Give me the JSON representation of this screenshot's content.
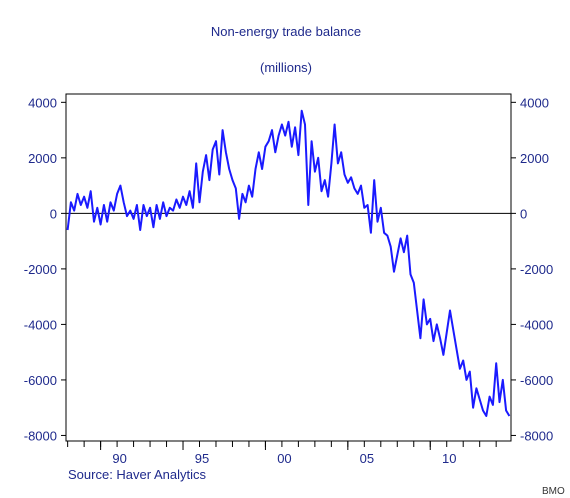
{
  "chart_data": {
    "type": "line",
    "title": "Non-energy trade balance",
    "subtitle": "(millions)",
    "xlabel": "",
    "ylabel": "",
    "xlim": [
      1987.9,
      2014.9
    ],
    "ylim": [
      -8200,
      4300
    ],
    "y_ticks": [
      4000,
      2000,
      0,
      -2000,
      -4000,
      -6000,
      -8000
    ],
    "x_ticks": [
      {
        "value": 1990,
        "label": "90"
      },
      {
        "value": 1995,
        "label": "95"
      },
      {
        "value": 2000,
        "label": "00"
      },
      {
        "value": 2005,
        "label": "05"
      },
      {
        "value": 2010,
        "label": "10"
      }
    ],
    "zero_line": true,
    "grid": false,
    "legend": "none",
    "series": [
      {
        "color": "#1a1aff",
        "points": [
          [
            1988.0,
            -600
          ],
          [
            1988.2,
            400
          ],
          [
            1988.4,
            100
          ],
          [
            1988.6,
            700
          ],
          [
            1988.8,
            300
          ],
          [
            1989.0,
            600
          ],
          [
            1989.2,
            200
          ],
          [
            1989.4,
            800
          ],
          [
            1989.6,
            -300
          ],
          [
            1989.8,
            200
          ],
          [
            1990.0,
            -400
          ],
          [
            1990.2,
            300
          ],
          [
            1990.4,
            -300
          ],
          [
            1990.6,
            400
          ],
          [
            1990.8,
            100
          ],
          [
            1991.0,
            700
          ],
          [
            1991.2,
            1000
          ],
          [
            1991.4,
            400
          ],
          [
            1991.6,
            -100
          ],
          [
            1991.8,
            100
          ],
          [
            1992.0,
            -200
          ],
          [
            1992.2,
            300
          ],
          [
            1992.4,
            -600
          ],
          [
            1992.6,
            300
          ],
          [
            1992.8,
            -100
          ],
          [
            1993.0,
            200
          ],
          [
            1993.2,
            -500
          ],
          [
            1993.4,
            300
          ],
          [
            1993.6,
            -200
          ],
          [
            1993.8,
            400
          ],
          [
            1994.0,
            -100
          ],
          [
            1994.2,
            200
          ],
          [
            1994.4,
            100
          ],
          [
            1994.6,
            500
          ],
          [
            1994.8,
            200
          ],
          [
            1995.0,
            600
          ],
          [
            1995.2,
            300
          ],
          [
            1995.4,
            800
          ],
          [
            1995.6,
            200
          ],
          [
            1995.8,
            1800
          ],
          [
            1996.0,
            400
          ],
          [
            1996.2,
            1500
          ],
          [
            1996.4,
            2100
          ],
          [
            1996.6,
            1200
          ],
          [
            1996.8,
            2300
          ],
          [
            1997.0,
            2600
          ],
          [
            1997.2,
            1400
          ],
          [
            1997.4,
            3000
          ],
          [
            1997.6,
            2200
          ],
          [
            1997.8,
            1600
          ],
          [
            1998.0,
            1200
          ],
          [
            1998.2,
            900
          ],
          [
            1998.4,
            -200
          ],
          [
            1998.6,
            700
          ],
          [
            1998.8,
            400
          ],
          [
            1999.0,
            1000
          ],
          [
            1999.2,
            600
          ],
          [
            1999.4,
            1600
          ],
          [
            1999.6,
            2200
          ],
          [
            1999.8,
            1600
          ],
          [
            2000.0,
            2400
          ],
          [
            2000.2,
            2600
          ],
          [
            2000.4,
            3000
          ],
          [
            2000.6,
            2200
          ],
          [
            2000.8,
            2800
          ],
          [
            2001.0,
            3200
          ],
          [
            2001.2,
            2800
          ],
          [
            2001.4,
            3300
          ],
          [
            2001.6,
            2400
          ],
          [
            2001.8,
            3100
          ],
          [
            2002.0,
            2100
          ],
          [
            2002.2,
            3700
          ],
          [
            2002.4,
            3200
          ],
          [
            2002.6,
            300
          ],
          [
            2002.8,
            2600
          ],
          [
            2003.0,
            1500
          ],
          [
            2003.2,
            2000
          ],
          [
            2003.4,
            800
          ],
          [
            2003.6,
            1200
          ],
          [
            2003.8,
            600
          ],
          [
            2004.0,
            1800
          ],
          [
            2004.2,
            3200
          ],
          [
            2004.4,
            1800
          ],
          [
            2004.6,
            2200
          ],
          [
            2004.8,
            1400
          ],
          [
            2005.0,
            1100
          ],
          [
            2005.2,
            1300
          ],
          [
            2005.4,
            900
          ],
          [
            2005.6,
            700
          ],
          [
            2005.8,
            1000
          ],
          [
            2006.0,
            200
          ],
          [
            2006.2,
            300
          ],
          [
            2006.4,
            -700
          ],
          [
            2006.6,
            1200
          ],
          [
            2006.8,
            -300
          ],
          [
            2007.0,
            200
          ],
          [
            2007.2,
            -700
          ],
          [
            2007.4,
            -800
          ],
          [
            2007.6,
            -1200
          ],
          [
            2007.8,
            -2100
          ],
          [
            2008.0,
            -1500
          ],
          [
            2008.2,
            -900
          ],
          [
            2008.4,
            -1400
          ],
          [
            2008.6,
            -800
          ],
          [
            2008.8,
            -2200
          ],
          [
            2009.0,
            -2500
          ],
          [
            2009.2,
            -3500
          ],
          [
            2009.4,
            -4500
          ],
          [
            2009.6,
            -3100
          ],
          [
            2009.8,
            -4000
          ],
          [
            2010.0,
            -3800
          ],
          [
            2010.2,
            -4600
          ],
          [
            2010.4,
            -4000
          ],
          [
            2010.6,
            -4500
          ],
          [
            2010.8,
            -5100
          ],
          [
            2011.0,
            -4300
          ],
          [
            2011.2,
            -3500
          ],
          [
            2011.4,
            -4200
          ],
          [
            2011.6,
            -4900
          ],
          [
            2011.8,
            -5600
          ],
          [
            2012.0,
            -5300
          ],
          [
            2012.2,
            -6000
          ],
          [
            2012.4,
            -5700
          ],
          [
            2012.6,
            -7000
          ],
          [
            2012.8,
            -6300
          ],
          [
            2013.0,
            -6700
          ],
          [
            2013.2,
            -7100
          ],
          [
            2013.4,
            -7300
          ],
          [
            2013.6,
            -6600
          ],
          [
            2013.8,
            -6900
          ],
          [
            2014.0,
            -5400
          ],
          [
            2014.2,
            -6800
          ],
          [
            2014.4,
            -6000
          ],
          [
            2014.6,
            -7100
          ],
          [
            2014.8,
            -7300
          ]
        ]
      }
    ],
    "source_note": "Source: Haver Analytics",
    "brand": "BMO"
  }
}
